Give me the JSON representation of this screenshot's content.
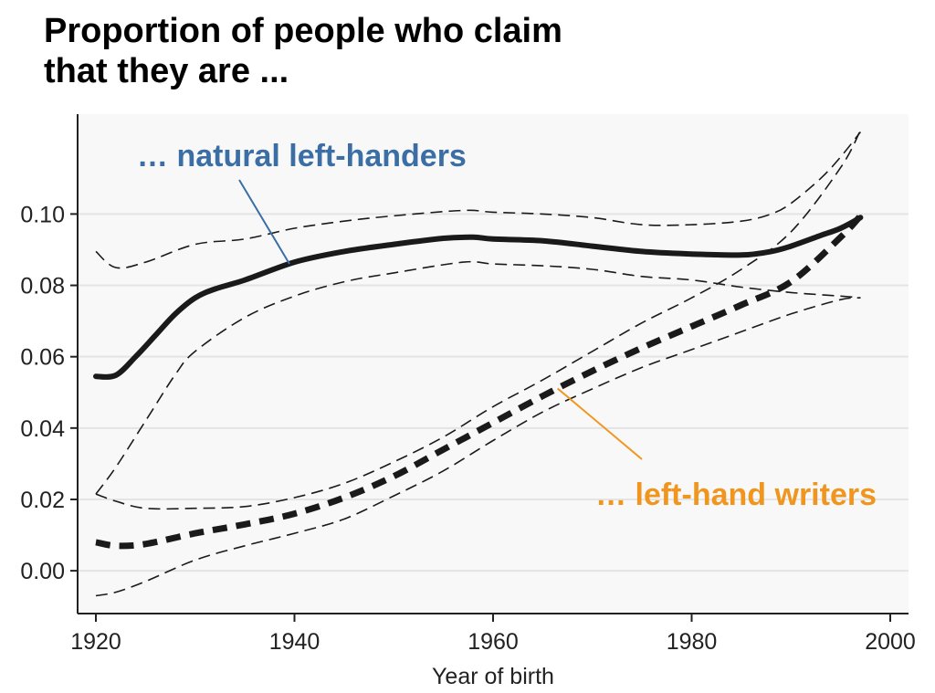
{
  "title": "Proportion of people who claim\nthat they are ...",
  "colors": {
    "natural": "#3a6ea5",
    "writers": "#f0961e",
    "plot_bg": "#f8f8f8",
    "grid": "#e4e4e4",
    "line": "#1a1a1a"
  },
  "chart_data": {
    "type": "line",
    "title": "",
    "xlabel": "Year of birth",
    "ylabel": "",
    "xlim": [
      1920,
      2000
    ],
    "ylim": [
      -0.012,
      0.128
    ],
    "x_ticks": [
      "1920",
      "1940",
      "1960",
      "1980",
      "2000"
    ],
    "y_ticks": [
      "0.00",
      "0.02",
      "0.04",
      "0.06",
      "0.08",
      "0.10"
    ],
    "grid": true,
    "annotations": [
      {
        "text": "… natural left-handers",
        "color": "#3a6ea5",
        "series": "natural"
      },
      {
        "text": "… left-hand writers",
        "color": "#f0961e",
        "series": "writers"
      }
    ],
    "series": [
      {
        "id": "natural",
        "style": "solid",
        "x": [
          1920,
          1922,
          1924,
          1926,
          1928,
          1930,
          1932,
          1935,
          1940,
          1945,
          1950,
          1955,
          1958,
          1960,
          1965,
          1970,
          1975,
          1980,
          1985,
          1988,
          1990,
          1993,
          1995,
          1997
        ],
        "y": [
          0.0545,
          0.0548,
          0.06,
          0.066,
          0.072,
          0.0765,
          0.079,
          0.0815,
          0.0865,
          0.0895,
          0.0915,
          0.0932,
          0.0935,
          0.093,
          0.0925,
          0.091,
          0.0895,
          0.0888,
          0.0885,
          0.0895,
          0.091,
          0.094,
          0.096,
          0.099
        ]
      },
      {
        "id": "natural_upper",
        "style": "ci",
        "x": [
          1920,
          1922,
          1925,
          1930,
          1935,
          1940,
          1945,
          1950,
          1957,
          1960,
          1965,
          1970,
          1975,
          1980,
          1985,
          1988,
          1990,
          1993,
          1995,
          1997
        ],
        "y": [
          0.0895,
          0.085,
          0.0865,
          0.0915,
          0.093,
          0.096,
          0.098,
          0.0995,
          0.101,
          0.1005,
          0.1,
          0.099,
          0.097,
          0.097,
          0.098,
          0.1,
          0.103,
          0.11,
          0.116,
          0.123
        ]
      },
      {
        "id": "natural_lower",
        "style": "ci",
        "x": [
          1920,
          1922,
          1925,
          1928,
          1930,
          1935,
          1940,
          1945,
          1950,
          1957,
          1960,
          1965,
          1970,
          1975,
          1980,
          1985,
          1990,
          1995,
          1997
        ],
        "y": [
          0.0215,
          0.029,
          0.042,
          0.055,
          0.0615,
          0.071,
          0.077,
          0.081,
          0.0835,
          0.0865,
          0.086,
          0.0855,
          0.0845,
          0.0825,
          0.0815,
          0.0795,
          0.078,
          0.077,
          0.0765
        ]
      },
      {
        "id": "writers",
        "style": "dashed-thick",
        "x": [
          1920,
          1922,
          1925,
          1930,
          1935,
          1940,
          1945,
          1950,
          1955,
          1960,
          1965,
          1970,
          1975,
          1980,
          1985,
          1990,
          1995,
          1997
        ],
        "y": [
          0.008,
          0.007,
          0.0075,
          0.0105,
          0.013,
          0.016,
          0.0205,
          0.0265,
          0.034,
          0.0415,
          0.049,
          0.056,
          0.0625,
          0.0685,
          0.0745,
          0.081,
          0.0935,
          0.0995
        ]
      },
      {
        "id": "writers_upper",
        "style": "ci",
        "x": [
          1920,
          1922,
          1925,
          1930,
          1935,
          1940,
          1945,
          1950,
          1955,
          1960,
          1965,
          1970,
          1975,
          1980,
          1985,
          1990,
          1995,
          1997
        ],
        "y": [
          0.0215,
          0.0195,
          0.0175,
          0.0175,
          0.018,
          0.0205,
          0.0245,
          0.0305,
          0.0375,
          0.046,
          0.0535,
          0.0615,
          0.0695,
          0.0765,
          0.0845,
          0.095,
          0.113,
          0.1235
        ]
      },
      {
        "id": "writers_lower",
        "style": "ci",
        "x": [
          1920,
          1922,
          1925,
          1930,
          1935,
          1940,
          1945,
          1950,
          1955,
          1960,
          1965,
          1970,
          1975,
          1980,
          1985,
          1990,
          1995,
          1997
        ],
        "y": [
          -0.007,
          -0.006,
          -0.003,
          0.003,
          0.007,
          0.0105,
          0.0145,
          0.021,
          0.028,
          0.0365,
          0.0445,
          0.051,
          0.057,
          0.062,
          0.067,
          0.072,
          0.076,
          0.0765
        ]
      }
    ]
  }
}
